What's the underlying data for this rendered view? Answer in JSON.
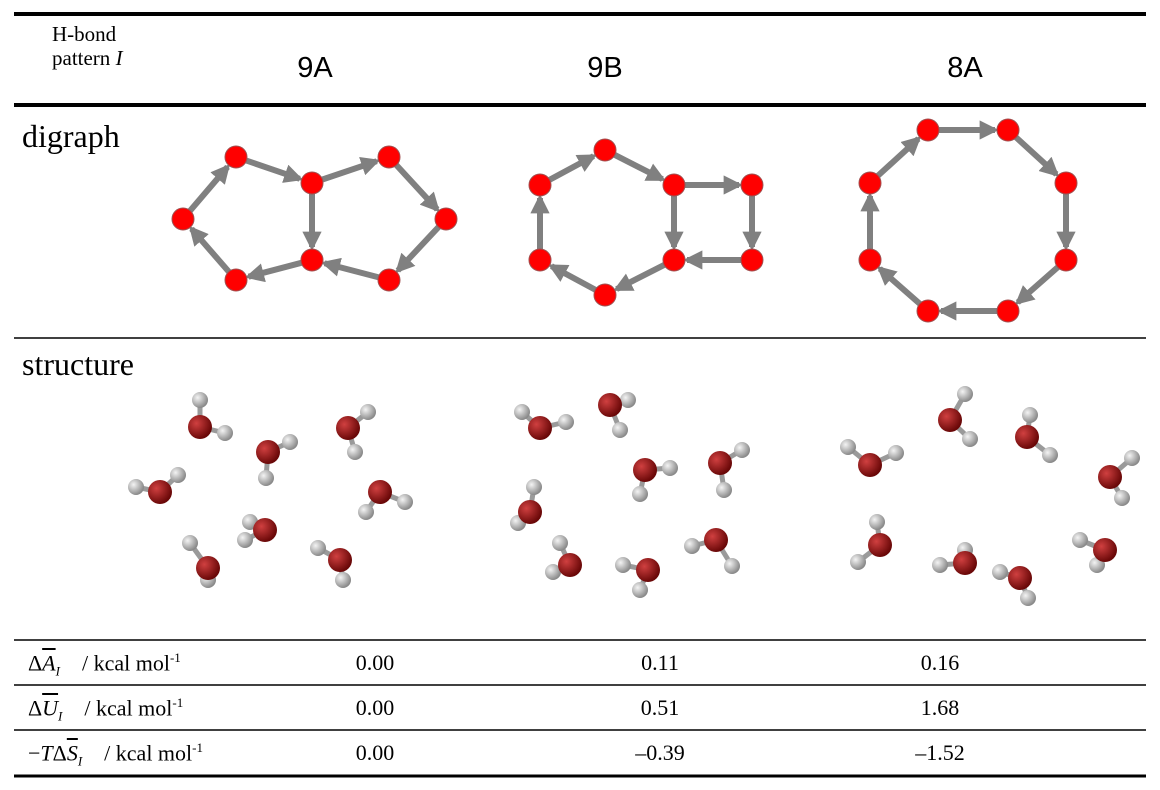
{
  "header": {
    "pattern_label": {
      "line1": "H-bond",
      "line2": "pattern",
      "symbol": "I"
    },
    "columns": [
      "9A",
      "9B",
      "8A"
    ]
  },
  "sections": {
    "digraph": "digraph",
    "structure": "structure"
  },
  "table": {
    "rows": [
      {
        "label": {
          "delta": "Δ",
          "symbol": "A",
          "subscript": "I",
          "unit": "/ kcal mol",
          "exponent": "-1"
        },
        "values": [
          "0.00",
          "0.11",
          "0.16"
        ]
      },
      {
        "label": {
          "delta": "Δ",
          "symbol": "U",
          "subscript": "I",
          "unit": "/ kcal mol",
          "exponent": "-1"
        },
        "values": [
          "0.00",
          "0.51",
          "1.68"
        ]
      },
      {
        "label": {
          "sign": "−",
          "factor": "T",
          "delta": "Δ",
          "symbol": "S",
          "subscript": "I",
          "unit": "/ kcal mol",
          "exponent": "-1"
        },
        "values": [
          "0.00",
          "–0.39",
          "–1.52"
        ]
      }
    ]
  }
}
